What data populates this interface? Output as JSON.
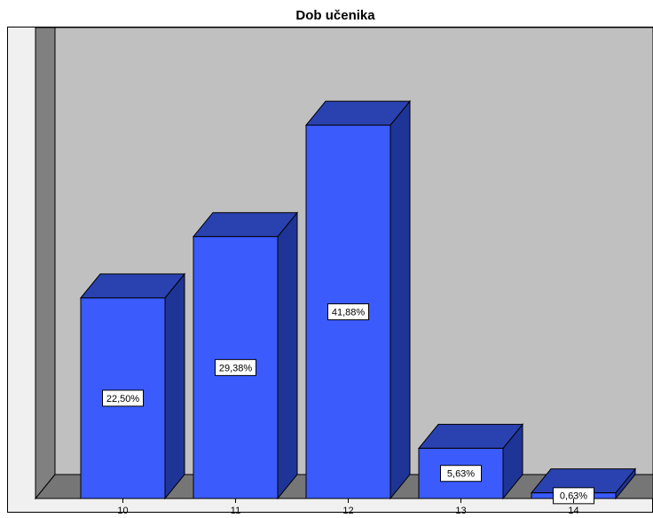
{
  "chart_data": {
    "type": "bar",
    "title": "Dob učenika",
    "categories": [
      "10",
      "11",
      "12",
      "13",
      "14"
    ],
    "values": [
      22.5,
      29.38,
      41.88,
      5.63,
      0.63
    ],
    "value_labels": [
      "22,50%",
      "29,38%",
      "41,88%",
      "5,63%",
      "0,63%"
    ],
    "color": "#3b5bfd"
  }
}
